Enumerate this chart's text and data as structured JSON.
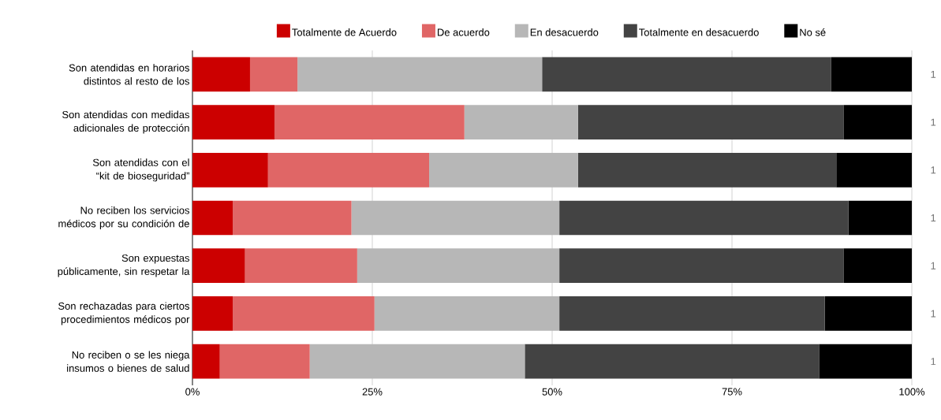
{
  "chart_data": {
    "type": "bar",
    "orientation": "horizontal",
    "stacked": true,
    "categories": [
      "Son atendidas en horarios distintos al resto de los",
      "Son atendidas con medidas adicionales de protección",
      "Son atendidas con el “kit de bioseguridad”",
      "No reciben los servicios médicos por su condición de",
      "Son expuestas públicamente, sin respetar la",
      "Son rechazadas para ciertos procedimientos médicos por",
      "No reciben o se les niega insumos o bienes de salud"
    ],
    "series": [
      {
        "name": "Totalmente de Acuerdo",
        "color": "#cc0000",
        "values": [
          8,
          11.4,
          10.5,
          5.6,
          7.3,
          5.6,
          3.8
        ]
      },
      {
        "name": "De acuerdo",
        "color": "#e06666",
        "values": [
          6.6,
          26.4,
          22.4,
          16.5,
          15.6,
          19.7,
          12.5
        ]
      },
      {
        "name": "En desacuerdo",
        "color": "#b7b7b7",
        "values": [
          34,
          15.8,
          20.7,
          28.9,
          28.1,
          25.7,
          29.9
        ]
      },
      {
        "name": "Totalmente en desacuerdo",
        "color": "#434343",
        "values": [
          40.2,
          36.9,
          35.9,
          40.2,
          39.5,
          36.9,
          40.9
        ]
      },
      {
        "name": "No sé",
        "color": "#000000",
        "values": [
          11.2,
          9.5,
          10.5,
          8.8,
          9.5,
          12.1,
          12.9
        ]
      }
    ],
    "xlim": [
      0,
      100
    ],
    "xticks": [
      {
        "value": 0,
        "label": "0%"
      },
      {
        "value": 25,
        "label": "25%"
      },
      {
        "value": 50,
        "label": "50%"
      },
      {
        "value": 75,
        "label": "75%"
      },
      {
        "value": 100,
        "label": "100%"
      }
    ],
    "grid": "x",
    "legend": "top",
    "annotations": [
      "1",
      "1",
      "1",
      "1",
      "1",
      "1",
      "1"
    ]
  }
}
